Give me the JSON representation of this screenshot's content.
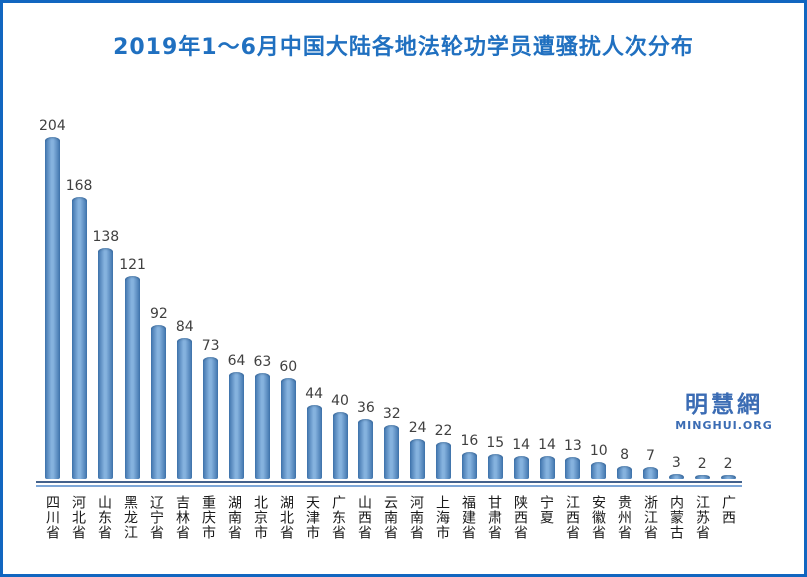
{
  "chart_data": {
    "type": "bar",
    "title": "2019年1～6月中国大陆各地法轮功学员遭骚扰人次分布",
    "categories": [
      "四川省",
      "河北省",
      "山东省",
      "黑龙江",
      "辽宁省",
      "吉林省",
      "重庆市",
      "湖南省",
      "北京市",
      "湖北省",
      "天津市",
      "广东省",
      "山西省",
      "云南省",
      "河南省",
      "上海市",
      "福建省",
      "甘肃省",
      "陕西省",
      "宁夏",
      "江西省",
      "安徽省",
      "贵州省",
      "浙江省",
      "内蒙古",
      "江苏省",
      "广西"
    ],
    "values": [
      204,
      168,
      138,
      121,
      92,
      84,
      73,
      64,
      63,
      60,
      44,
      40,
      36,
      32,
      24,
      22,
      16,
      15,
      14,
      14,
      13,
      10,
      8,
      7,
      3,
      2,
      2
    ],
    "xlabel": "",
    "ylabel": "",
    "ylim": [
      0,
      215
    ],
    "grid": false,
    "legend": "none",
    "value_labels_shown": true,
    "bar_orientation": "vertical"
  },
  "watermark": {
    "cn": "明慧網",
    "en": "MINGHUI.ORG"
  },
  "colors": {
    "border": "#1166c0",
    "title": "#2070c0",
    "bar_edge": "#3f74ad",
    "bar_center": "#85b2de",
    "axis_dark": "#44628c",
    "axis_light": "#7da7d8",
    "value_label": "#404040",
    "watermark": "#3b6cb4"
  }
}
